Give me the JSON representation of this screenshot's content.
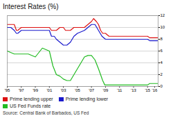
{
  "chart_data": {
    "type": "line",
    "title": "Interest Rates (%)",
    "source": "Source: Central Bank of Barbados, US Fed",
    "xlim": [
      1995,
      2016.5
    ],
    "xticks": [
      {
        "value": 1995,
        "label": "'95"
      },
      {
        "value": 1997,
        "label": "'97"
      },
      {
        "value": 1999,
        "label": "'99"
      },
      {
        "value": 2001,
        "label": "'01"
      },
      {
        "value": 2003,
        "label": "'03"
      },
      {
        "value": 2005,
        "label": "'05"
      },
      {
        "value": 2007,
        "label": "'07"
      },
      {
        "value": 2009,
        "label": "'09"
      },
      {
        "value": 2011,
        "label": "'11"
      },
      {
        "value": 2013,
        "label": "'13"
      },
      {
        "value": 2015,
        "label": "'15"
      },
      {
        "value": 2016,
        "label": "'16"
      }
    ],
    "ylim": [
      0,
      12
    ],
    "yticks": [
      0,
      2,
      4,
      6,
      8,
      10,
      12
    ],
    "grid": true,
    "legend": "bottom",
    "series": [
      {
        "name": "Prime lending upper",
        "color": "#dd1111",
        "x": [
          1995,
          1995.5,
          1996,
          1996.3,
          1996.5,
          1997,
          1997.5,
          1998,
          1999,
          2000,
          2001,
          2001.3,
          2001.7,
          2002,
          2002.5,
          2003,
          2003.3,
          2003.7,
          2004,
          2004.5,
          2005,
          2006,
          2006.5,
          2007,
          2007.3,
          2007.7,
          2008,
          2008.3,
          2008.6,
          2009,
          2009.5,
          2010,
          2011,
          2012,
          2013,
          2014,
          2015,
          2015.3,
          2016,
          2016.5
        ],
        "values": [
          10.5,
          10.5,
          10.5,
          9.5,
          9.5,
          10.0,
          10.0,
          10.0,
          10.0,
          10.0,
          10.0,
          9.5,
          9.5,
          9.5,
          10.0,
          10.0,
          9.5,
          9.5,
          9.5,
          10.0,
          10.0,
          10.0,
          10.5,
          11.0,
          11.5,
          11.0,
          10.5,
          9.5,
          9.0,
          9.0,
          8.5,
          8.5,
          8.5,
          8.5,
          8.5,
          8.5,
          8.5,
          8.25,
          8.25,
          8.25
        ]
      },
      {
        "name": "Prime lending lower",
        "color": "#1a1acc",
        "x": [
          1995,
          1995.5,
          1996,
          1996.3,
          1996.5,
          1997,
          1997.5,
          1998,
          1999,
          2000,
          2001,
          2001.3,
          2001.7,
          2002,
          2002.5,
          2003,
          2003.5,
          2004,
          2004.5,
          2005,
          2006,
          2006.5,
          2007,
          2007.5,
          2008,
          2008.5,
          2009,
          2009.5,
          2010,
          2011,
          2012,
          2013,
          2014,
          2015,
          2015.3,
          2016,
          2016.5
        ],
        "values": [
          10.0,
          10.0,
          9.5,
          9.0,
          9.0,
          9.5,
          9.5,
          9.5,
          9.5,
          9.5,
          9.5,
          8.5,
          8.5,
          8.0,
          7.5,
          7.0,
          7.0,
          7.5,
          8.5,
          9.0,
          9.5,
          10.0,
          10.5,
          10.5,
          9.5,
          8.5,
          8.0,
          8.0,
          8.0,
          8.0,
          8.0,
          8.0,
          8.0,
          8.0,
          7.75,
          7.75,
          7.75
        ]
      },
      {
        "name": "US Fed Funds rate",
        "color": "#22bb22",
        "x": [
          1995,
          1996,
          1997,
          1998,
          1999,
          2000,
          2001,
          2001.5,
          2002,
          2002.5,
          2003,
          2003.5,
          2004,
          2004.5,
          2005,
          2005.5,
          2006,
          2006.5,
          2007,
          2007.5,
          2008,
          2008.3,
          2008.6,
          2008.9,
          2009,
          2009.5,
          2010,
          2011,
          2012,
          2013,
          2014,
          2015,
          2015.3,
          2016,
          2016.5
        ],
        "values": [
          6.0,
          5.5,
          5.5,
          5.5,
          5.0,
          6.5,
          6.0,
          3.5,
          2.0,
          1.75,
          1.25,
          1.0,
          1.0,
          2.0,
          3.0,
          4.0,
          5.0,
          5.25,
          5.25,
          4.5,
          3.0,
          2.0,
          1.0,
          0.25,
          0.25,
          0.25,
          0.25,
          0.25,
          0.25,
          0.25,
          0.25,
          0.25,
          0.5,
          0.5,
          0.5
        ]
      }
    ]
  }
}
